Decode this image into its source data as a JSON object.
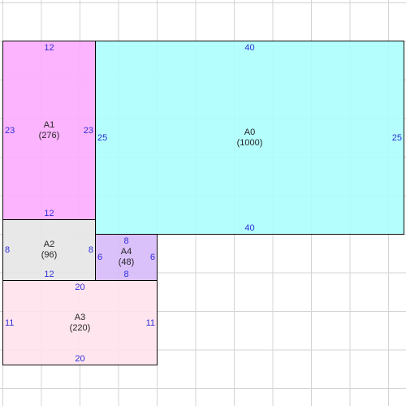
{
  "colors": {
    "dim_text": "#1a1ad6",
    "border": "#000000"
  },
  "areas": {
    "a0": {
      "name": "A0",
      "area": "(1000)",
      "top": "40",
      "bottom": "40",
      "left": "25",
      "right": "25",
      "fill": "#aefffe"
    },
    "a1": {
      "name": "A1",
      "area": "(276)",
      "top": "12",
      "bottom": "12",
      "left": "23",
      "right": "23",
      "fill": "#fcaefe"
    },
    "a2": {
      "name": "A2",
      "area": "(96)",
      "top": "12",
      "bottom": "12",
      "left": "8",
      "right": "8",
      "fill": "#e7e7e7"
    },
    "a3": {
      "name": "A3",
      "area": "(220)",
      "top": "20",
      "bottom": "20",
      "left": "11",
      "right": "11",
      "fill": "#ffe3ec"
    },
    "a4": {
      "name": "A4",
      "area": "(48)",
      "top": "8",
      "bottom": "8",
      "left": "6",
      "right": "6",
      "fill": "#d8bcfa"
    }
  }
}
